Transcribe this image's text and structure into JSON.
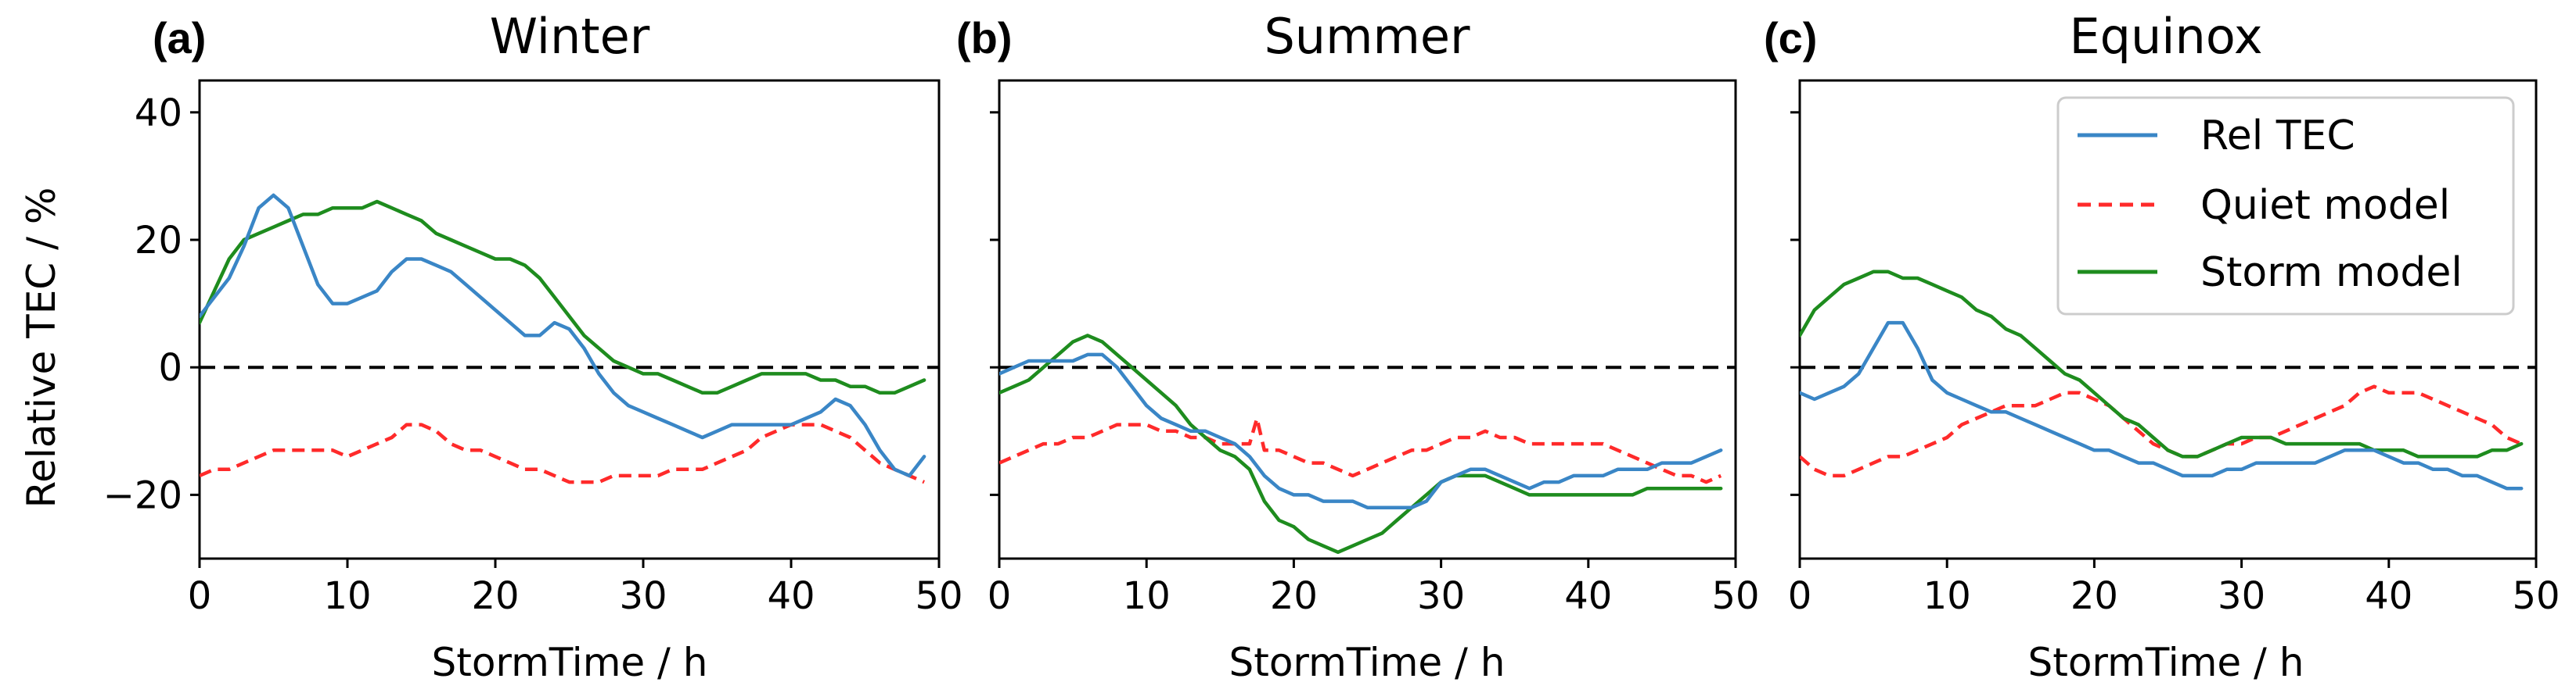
{
  "colors": {
    "rel_tec": "#3a86c6",
    "quiet_model": "#ff2a2a",
    "storm_model": "#1e8c1e",
    "zero_line": "#000000"
  },
  "legend": [
    "Rel TEC",
    "Quiet model",
    "Storm model"
  ],
  "ylabel": "Relative TEC / %",
  "xlabel": "StormTime / h",
  "chart_data": [
    {
      "type": "line",
      "panel_label": "(a)",
      "title": "Winter",
      "xlabel": "StormTime / h",
      "ylabel": "Relative TEC / %",
      "xlim": [
        0,
        50
      ],
      "ylim": [
        -30,
        45
      ],
      "xticks": [
        "0",
        "10",
        "20",
        "30",
        "40",
        "50"
      ],
      "yticks": [
        "40",
        "20",
        "0",
        "−20"
      ],
      "series": [
        {
          "name": "Rel TEC",
          "style": "solid",
          "x": [
            0,
            1,
            2,
            3,
            4,
            5,
            6,
            7,
            8,
            9,
            10,
            11,
            12,
            13,
            14,
            15,
            16,
            17,
            18,
            19,
            20,
            21,
            22,
            23,
            24,
            25,
            26,
            27,
            28,
            29,
            30,
            31,
            32,
            33,
            34,
            35,
            36,
            37,
            38,
            39,
            40,
            41,
            42,
            43,
            44,
            45,
            46,
            47,
            48,
            49
          ],
          "y": [
            8,
            11,
            14,
            19,
            25,
            27,
            25,
            19,
            13,
            10,
            10,
            11,
            12,
            15,
            17,
            17,
            16,
            15,
            13,
            11,
            9,
            7,
            5,
            5,
            7,
            6,
            3,
            -1,
            -4,
            -6,
            -7,
            -8,
            -9,
            -10,
            -11,
            -10,
            -9,
            -9,
            -9,
            -9,
            -9,
            -8,
            -7,
            -5,
            -6,
            -9,
            -13,
            -16,
            -17,
            -14
          ]
        },
        {
          "name": "Quiet model",
          "style": "dashed",
          "x": [
            0,
            1,
            2,
            3,
            4,
            5,
            6,
            7,
            8,
            9,
            10,
            11,
            12,
            13,
            14,
            15,
            16,
            17,
            18,
            19,
            20,
            21,
            22,
            23,
            24,
            25,
            26,
            27,
            28,
            29,
            30,
            31,
            32,
            33,
            34,
            35,
            36,
            37,
            38,
            39,
            40,
            41,
            42,
            43,
            44,
            45,
            46,
            47,
            48,
            49
          ],
          "y": [
            -17,
            -16,
            -16,
            -15,
            -14,
            -13,
            -13,
            -13,
            -13,
            -13,
            -14,
            -13,
            -12,
            -11,
            -9,
            -9,
            -10,
            -12,
            -13,
            -13,
            -14,
            -15,
            -16,
            -16,
            -17,
            -18,
            -18,
            -18,
            -17,
            -17,
            -17,
            -17,
            -16,
            -16,
            -16,
            -15,
            -14,
            -13,
            -11,
            -10,
            -9,
            -9,
            -9,
            -10,
            -11,
            -13,
            -15,
            -16,
            -17,
            -18
          ]
        },
        {
          "name": "Storm model",
          "style": "solid",
          "x": [
            0,
            1,
            2,
            3,
            4,
            5,
            6,
            7,
            8,
            9,
            10,
            11,
            12,
            13,
            14,
            15,
            16,
            17,
            18,
            19,
            20,
            21,
            22,
            23,
            24,
            25,
            26,
            27,
            28,
            29,
            30,
            31,
            32,
            33,
            34,
            35,
            36,
            37,
            38,
            39,
            40,
            41,
            42,
            43,
            44,
            45,
            46,
            47,
            48,
            49
          ],
          "y": [
            7,
            12,
            17,
            20,
            21,
            22,
            23,
            24,
            24,
            25,
            25,
            25,
            26,
            25,
            24,
            23,
            21,
            20,
            19,
            18,
            17,
            17,
            16,
            14,
            11,
            8,
            5,
            3,
            1,
            0,
            -1,
            -1,
            -2,
            -3,
            -4,
            -4,
            -3,
            -2,
            -1,
            -1,
            -1,
            -1,
            -2,
            -2,
            -3,
            -3,
            -4,
            -4,
            -3,
            -2
          ]
        }
      ]
    },
    {
      "type": "line",
      "panel_label": "(b)",
      "title": "Summer",
      "xlabel": "StormTime / h",
      "xlim": [
        0,
        50
      ],
      "ylim": [
        -30,
        45
      ],
      "xticks": [
        "0",
        "10",
        "20",
        "30",
        "40",
        "50"
      ],
      "series": [
        {
          "name": "Rel TEC",
          "style": "solid",
          "x": [
            0,
            1,
            2,
            3,
            4,
            5,
            6,
            7,
            8,
            9,
            10,
            11,
            12,
            13,
            14,
            15,
            16,
            17,
            18,
            19,
            20,
            21,
            22,
            23,
            24,
            25,
            26,
            27,
            28,
            29,
            30,
            31,
            32,
            33,
            34,
            35,
            36,
            37,
            38,
            39,
            40,
            41,
            42,
            43,
            44,
            45,
            46,
            47,
            48,
            49
          ],
          "y": [
            -1,
            0,
            1,
            1,
            1,
            1,
            2,
            2,
            0,
            -3,
            -6,
            -8,
            -9,
            -10,
            -10,
            -11,
            -12,
            -14,
            -17,
            -19,
            -20,
            -20,
            -21,
            -21,
            -21,
            -22,
            -22,
            -22,
            -22,
            -21,
            -18,
            -17,
            -16,
            -16,
            -17,
            -18,
            -19,
            -18,
            -18,
            -17,
            -17,
            -17,
            -16,
            -16,
            -16,
            -15,
            -15,
            -15,
            -14,
            -13
          ]
        },
        {
          "name": "Quiet model",
          "style": "dashed",
          "x": [
            0,
            1,
            2,
            3,
            4,
            5,
            6,
            7,
            8,
            9,
            10,
            11,
            12,
            13,
            14,
            15,
            16,
            17,
            17.5,
            18,
            19,
            20,
            21,
            22,
            23,
            24,
            25,
            26,
            27,
            28,
            29,
            30,
            31,
            32,
            33,
            34,
            35,
            36,
            37,
            38,
            39,
            40,
            41,
            42,
            43,
            44,
            45,
            46,
            47,
            48,
            49
          ],
          "y": [
            -15,
            -14,
            -13,
            -12,
            -12,
            -11,
            -11,
            -10,
            -9,
            -9,
            -9,
            -10,
            -10,
            -11,
            -11,
            -12,
            -12,
            -12,
            -8,
            -13,
            -13,
            -14,
            -15,
            -15,
            -16,
            -17,
            -16,
            -15,
            -14,
            -13,
            -13,
            -12,
            -11,
            -11,
            -10,
            -11,
            -11,
            -12,
            -12,
            -12,
            -12,
            -12,
            -12,
            -13,
            -14,
            -15,
            -16,
            -17,
            -17,
            -18,
            -17
          ]
        },
        {
          "name": "Storm model",
          "style": "solid",
          "x": [
            0,
            1,
            2,
            3,
            4,
            5,
            6,
            7,
            8,
            9,
            10,
            11,
            12,
            13,
            14,
            15,
            16,
            17,
            18,
            19,
            20,
            21,
            22,
            23,
            24,
            25,
            26,
            27,
            28,
            29,
            30,
            31,
            32,
            33,
            34,
            35,
            36,
            37,
            38,
            39,
            40,
            41,
            42,
            43,
            44,
            45,
            46,
            47,
            48,
            49
          ],
          "y": [
            -4,
            -3,
            -2,
            0,
            2,
            4,
            5,
            4,
            2,
            0,
            -2,
            -4,
            -6,
            -9,
            -11,
            -13,
            -14,
            -16,
            -21,
            -24,
            -25,
            -27,
            -28,
            -29,
            -28,
            -27,
            -26,
            -24,
            -22,
            -20,
            -18,
            -17,
            -17,
            -17,
            -18,
            -19,
            -20,
            -20,
            -20,
            -20,
            -20,
            -20,
            -20,
            -20,
            -19,
            -19,
            -19,
            -19,
            -19,
            -19
          ]
        }
      ]
    },
    {
      "type": "line",
      "panel_label": "(c)",
      "title": "Equinox",
      "xlabel": "StormTime / h",
      "xlim": [
        0,
        50
      ],
      "ylim": [
        -30,
        45
      ],
      "xticks": [
        "0",
        "10",
        "20",
        "30",
        "40",
        "50"
      ],
      "series": [
        {
          "name": "Rel TEC",
          "style": "solid",
          "x": [
            0,
            1,
            2,
            3,
            4,
            5,
            6,
            7,
            8,
            9,
            10,
            11,
            12,
            13,
            14,
            15,
            16,
            17,
            18,
            19,
            20,
            21,
            22,
            23,
            24,
            25,
            26,
            27,
            28,
            29,
            30,
            31,
            32,
            33,
            34,
            35,
            36,
            37,
            38,
            39,
            40,
            41,
            42,
            43,
            44,
            45,
            46,
            47,
            48,
            49
          ],
          "y": [
            -4,
            -5,
            -4,
            -3,
            -1,
            3,
            7,
            7,
            3,
            -2,
            -4,
            -5,
            -6,
            -7,
            -7,
            -8,
            -9,
            -10,
            -11,
            -12,
            -13,
            -13,
            -14,
            -15,
            -15,
            -16,
            -17,
            -17,
            -17,
            -16,
            -16,
            -15,
            -15,
            -15,
            -15,
            -15,
            -14,
            -13,
            -13,
            -13,
            -14,
            -15,
            -15,
            -16,
            -16,
            -17,
            -17,
            -18,
            -19,
            -19
          ]
        },
        {
          "name": "Quiet model",
          "style": "dashed",
          "x": [
            0,
            1,
            2,
            3,
            4,
            5,
            6,
            7,
            8,
            9,
            10,
            11,
            12,
            13,
            14,
            15,
            16,
            17,
            18,
            19,
            20,
            21,
            22,
            23,
            24,
            25,
            26,
            27,
            28,
            29,
            30,
            31,
            32,
            33,
            34,
            35,
            36,
            37,
            38,
            39,
            40,
            41,
            42,
            43,
            44,
            45,
            46,
            47,
            48,
            49
          ],
          "y": [
            -14,
            -16,
            -17,
            -17,
            -16,
            -15,
            -14,
            -14,
            -13,
            -12,
            -11,
            -9,
            -8,
            -7,
            -6,
            -6,
            -6,
            -5,
            -4,
            -4,
            -5,
            -6,
            -8,
            -10,
            -12,
            -13,
            -14,
            -14,
            -13,
            -12,
            -12,
            -11,
            -11,
            -10,
            -9,
            -8,
            -7,
            -6,
            -4,
            -3,
            -4,
            -4,
            -4,
            -5,
            -6,
            -7,
            -8,
            -9,
            -11,
            -12
          ]
        },
        {
          "name": "Storm model",
          "style": "solid",
          "x": [
            0,
            1,
            2,
            3,
            4,
            5,
            6,
            7,
            8,
            9,
            10,
            11,
            12,
            13,
            14,
            15,
            16,
            17,
            18,
            19,
            20,
            21,
            22,
            23,
            24,
            25,
            26,
            27,
            28,
            29,
            30,
            31,
            32,
            33,
            34,
            35,
            36,
            37,
            38,
            39,
            40,
            41,
            42,
            43,
            44,
            45,
            46,
            47,
            48,
            49
          ],
          "y": [
            5,
            9,
            11,
            13,
            14,
            15,
            15,
            14,
            14,
            13,
            12,
            11,
            9,
            8,
            6,
            5,
            3,
            1,
            -1,
            -2,
            -4,
            -6,
            -8,
            -9,
            -11,
            -13,
            -14,
            -14,
            -13,
            -12,
            -11,
            -11,
            -11,
            -12,
            -12,
            -12,
            -12,
            -12,
            -12,
            -13,
            -13,
            -13,
            -14,
            -14,
            -14,
            -14,
            -14,
            -13,
            -13,
            -12
          ]
        }
      ]
    }
  ]
}
